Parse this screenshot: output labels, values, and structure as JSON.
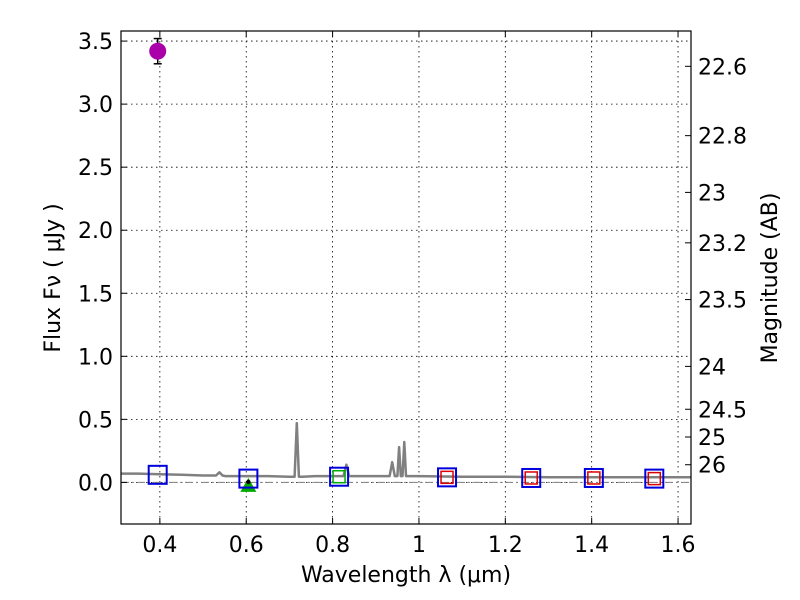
{
  "chart_data": {
    "type": "line",
    "xlabel": "Wavelength  λ (μm)",
    "ylabel": "Flux  Fν  ( μJy )",
    "ylabel_right": "Magnitude (AB)",
    "xlim": [
      0.31,
      1.63
    ],
    "ylim": [
      -0.33,
      3.58
    ],
    "grid": true,
    "x_ticks": [
      0.4,
      0.6,
      0.8,
      1.0,
      1.2,
      1.4,
      1.6
    ],
    "x_tick_labels": [
      "0.4",
      "0.6",
      "0.8",
      "1",
      "1.2",
      "1.4",
      "1.6"
    ],
    "y_ticks": [
      0.0,
      0.5,
      1.0,
      1.5,
      2.0,
      2.5,
      3.0,
      3.5
    ],
    "y_tick_labels": [
      "0.0",
      "0.5",
      "1.0",
      "1.5",
      "2.0",
      "2.5",
      "3.0",
      "3.5"
    ],
    "right_ticks": [
      {
        "flux": 3.3,
        "label": "22.6"
      },
      {
        "flux": 2.75,
        "label": "22.8"
      },
      {
        "flux": 2.3,
        "label": "23"
      },
      {
        "flux": 1.9,
        "label": "23.2"
      },
      {
        "flux": 1.45,
        "label": "23.5"
      },
      {
        "flux": 0.92,
        "label": "24"
      },
      {
        "flux": 0.58,
        "label": "24.5"
      },
      {
        "flux": 0.36,
        "label": "25"
      },
      {
        "flux": 0.14,
        "label": "26"
      }
    ],
    "series": [
      {
        "kind": "model_spectrum",
        "color": "#808080",
        "x": [
          0.31,
          0.35,
          0.4,
          0.45,
          0.5,
          0.53,
          0.538,
          0.545,
          0.552,
          0.56,
          0.6,
          0.65,
          0.7,
          0.712,
          0.717,
          0.722,
          0.73,
          0.76,
          0.8,
          0.825,
          0.832,
          0.838,
          0.845,
          0.87,
          0.92,
          0.932,
          0.938,
          0.944,
          0.95,
          0.954,
          0.958,
          0.962,
          0.966,
          0.97,
          0.98,
          1.0,
          1.1,
          1.2,
          1.3,
          1.4,
          1.5,
          1.63
        ],
        "y": [
          0.07,
          0.07,
          0.065,
          0.06,
          0.055,
          0.055,
          0.08,
          0.055,
          0.05,
          0.05,
          0.05,
          0.05,
          0.045,
          0.045,
          0.47,
          0.045,
          0.045,
          0.05,
          0.05,
          0.05,
          0.14,
          0.05,
          0.05,
          0.05,
          0.05,
          0.05,
          0.16,
          0.05,
          0.05,
          0.28,
          0.05,
          0.05,
          0.32,
          0.05,
          0.05,
          0.05,
          0.045,
          0.045,
          0.04,
          0.04,
          0.04,
          0.04
        ]
      },
      {
        "kind": "detection",
        "marker": "circle",
        "color": "#aa00aa",
        "x": [
          0.395
        ],
        "y": [
          3.42
        ],
        "yerr": [
          0.1
        ]
      },
      {
        "kind": "model_photometry",
        "marker": "square",
        "color": "#0000dd",
        "x": [
          0.395,
          0.605,
          0.815,
          1.065,
          1.26,
          1.405,
          1.545
        ],
        "y": [
          0.06,
          0.03,
          0.045,
          0.04,
          0.035,
          0.035,
          0.03
        ]
      },
      {
        "kind": "upper_limit",
        "marker": "triangle",
        "color": "#00aa00",
        "x": [
          0.605
        ],
        "y": [
          -0.02
        ]
      },
      {
        "kind": "inner_marker",
        "marker": "square",
        "color": "#00aa00",
        "x": [
          0.815
        ],
        "y": [
          0.045
        ]
      },
      {
        "kind": "inner_marker",
        "marker": "square",
        "color": "#dd0000",
        "x": [
          1.065,
          1.26,
          1.405,
          1.545
        ],
        "y": [
          0.04,
          0.035,
          0.035,
          0.03
        ]
      }
    ],
    "zero_line": {
      "y": 0.0,
      "color": "#808080",
      "style": "dash-dot"
    }
  }
}
